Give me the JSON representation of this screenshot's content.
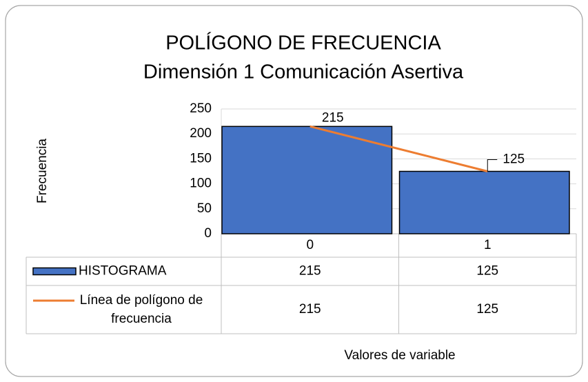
{
  "chart_data": {
    "type": "bar",
    "title": "POLÍGONO DE FRECUENCIA",
    "subtitle": "Dimensión 1 Comunicación Asertiva",
    "y_label": "Frecuencia",
    "x_label": "Valores de variable",
    "categories": [
      "0",
      "1"
    ],
    "series": [
      {
        "name": "HISTOGRAMA",
        "type": "bar",
        "color": "#4472c4",
        "values": [
          215,
          125
        ]
      },
      {
        "name": "Línea de polígono de frecuencia",
        "type": "line",
        "color": "#ed7d31",
        "values": [
          215,
          125
        ]
      }
    ],
    "ylim": [
      0,
      250
    ],
    "yticks": [
      0,
      50,
      100,
      150,
      200,
      250
    ],
    "grid": true
  }
}
